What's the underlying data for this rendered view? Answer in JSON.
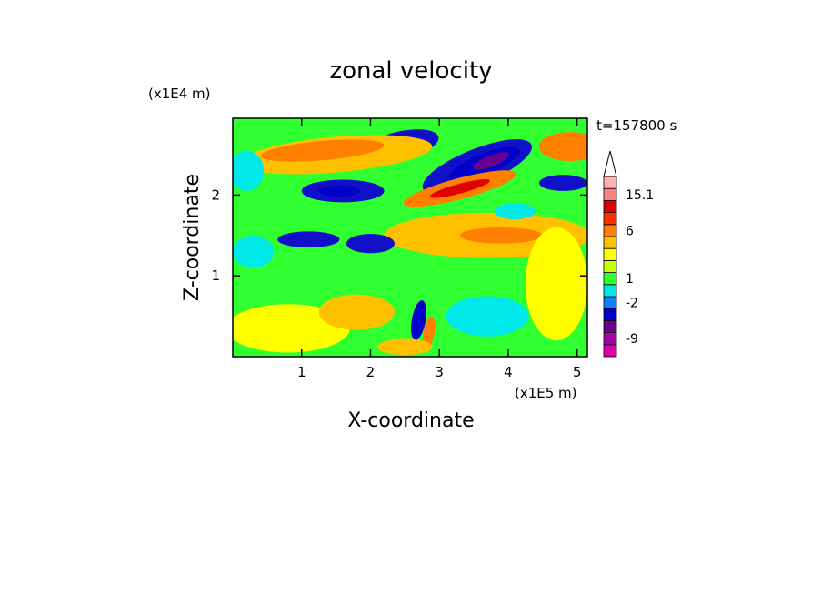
{
  "chart_data": {
    "type": "heatmap",
    "title": "zonal velocity",
    "xlabel": "X-coordinate",
    "ylabel": "Z-coordinate",
    "x_unit": "(x1E5 m)",
    "y_unit": "(x1E4 m)",
    "time_label": "t=157800 s",
    "xlim": [
      0,
      5.15
    ],
    "ylim": [
      0,
      2.95
    ],
    "x_ticks": [
      {
        "value": 1,
        "label": "1"
      },
      {
        "value": 2,
        "label": "2"
      },
      {
        "value": 3,
        "label": "3"
      },
      {
        "value": 4,
        "label": "4"
      },
      {
        "value": 5,
        "label": "5"
      }
    ],
    "y_ticks": [
      {
        "value": 1,
        "label": "1"
      },
      {
        "value": 2,
        "label": "2"
      }
    ],
    "background_level": "0",
    "features": [
      {
        "x": 2.45,
        "z": 2.62,
        "rx": 0.55,
        "rz": 0.17,
        "rot": -12,
        "level": "-5"
      },
      {
        "x": 2.55,
        "z": 2.58,
        "rx": 0.25,
        "rz": 0.09,
        "rot": -12,
        "level": "-7"
      },
      {
        "x": 3.55,
        "z": 2.35,
        "rx": 0.85,
        "rz": 0.22,
        "rot": -22,
        "level": "-5"
      },
      {
        "x": 3.65,
        "z": 2.38,
        "rx": 0.55,
        "rz": 0.13,
        "rot": -22,
        "level": "-7"
      },
      {
        "x": 3.75,
        "z": 2.42,
        "rx": 0.28,
        "rz": 0.07,
        "rot": -22,
        "level": "-9"
      },
      {
        "x": 3.3,
        "z": 2.08,
        "rx": 0.85,
        "rz": 0.13,
        "rot": -15,
        "level": "4"
      },
      {
        "x": 3.3,
        "z": 2.08,
        "rx": 0.45,
        "rz": 0.06,
        "rot": -15,
        "level": "8"
      },
      {
        "x": 1.6,
        "z": 2.05,
        "rx": 0.6,
        "rz": 0.14,
        "rot": 0,
        "level": "-5"
      },
      {
        "x": 1.55,
        "z": 2.05,
        "rx": 0.3,
        "rz": 0.07,
        "rot": 0,
        "level": "-7"
      },
      {
        "x": 4.9,
        "z": 2.6,
        "rx": 0.45,
        "rz": 0.18,
        "rot": 0,
        "level": "4"
      },
      {
        "x": 4.8,
        "z": 2.15,
        "rx": 0.35,
        "rz": 0.1,
        "rot": 0,
        "level": "-5"
      },
      {
        "x": 1.5,
        "z": 2.5,
        "rx": 1.4,
        "rz": 0.22,
        "rot": -5,
        "level": "2"
      },
      {
        "x": 1.3,
        "z": 2.55,
        "rx": 0.9,
        "rz": 0.12,
        "rot": -5,
        "level": "4"
      },
      {
        "x": 3.7,
        "z": 1.5,
        "rx": 1.5,
        "rz": 0.28,
        "rot": 0,
        "level": "2"
      },
      {
        "x": 3.9,
        "z": 1.5,
        "rx": 0.6,
        "rz": 0.1,
        "rot": 0,
        "level": "4"
      },
      {
        "x": 2.0,
        "z": 1.4,
        "rx": 0.35,
        "rz": 0.12,
        "rot": 0,
        "level": "-5"
      },
      {
        "x": 1.1,
        "z": 1.45,
        "rx": 0.45,
        "rz": 0.1,
        "rot": 0,
        "level": "-5"
      },
      {
        "x": 0.3,
        "z": 1.3,
        "rx": 0.3,
        "rz": 0.2,
        "rot": 0,
        "level": "-2"
      },
      {
        "x": 0.8,
        "z": 0.35,
        "rx": 0.9,
        "rz": 0.3,
        "rot": 0,
        "level": "1"
      },
      {
        "x": 1.8,
        "z": 0.55,
        "rx": 0.55,
        "rz": 0.22,
        "rot": 0,
        "level": "2"
      },
      {
        "x": 4.7,
        "z": 0.9,
        "rx": 0.45,
        "rz": 0.7,
        "rot": 0,
        "level": "1"
      },
      {
        "x": 3.7,
        "z": 0.5,
        "rx": 0.6,
        "rz": 0.25,
        "rot": 0,
        "level": "-2"
      },
      {
        "x": 2.7,
        "z": 0.45,
        "rx": 0.1,
        "rz": 0.25,
        "rot": 10,
        "level": "-7"
      },
      {
        "x": 2.85,
        "z": 0.3,
        "rx": 0.08,
        "rz": 0.2,
        "rot": 10,
        "level": "4"
      },
      {
        "x": 2.5,
        "z": 0.12,
        "rx": 0.4,
        "rz": 0.1,
        "rot": 0,
        "level": "2"
      },
      {
        "x": 4.1,
        "z": 1.8,
        "rx": 0.3,
        "rz": 0.1,
        "rot": 0,
        "level": "-2"
      },
      {
        "x": 0.2,
        "z": 2.3,
        "rx": 0.25,
        "rz": 0.25,
        "rot": 0,
        "level": "-2"
      }
    ],
    "legend": {
      "levels": [
        {
          "color": "#e000a8",
          "label": ""
        },
        {
          "color": "#a800a8",
          "label": "-9"
        },
        {
          "color": "#6a0090",
          "label": ""
        },
        {
          "color": "#0000c8",
          "label": ""
        },
        {
          "color": "#1080ff",
          "label": "-2"
        },
        {
          "color": "#00e8e8",
          "label": ""
        },
        {
          "color": "#30ff30",
          "label": "1"
        },
        {
          "color": "#c8ff00",
          "label": ""
        },
        {
          "color": "#ffff00",
          "label": ""
        },
        {
          "color": "#ffc000",
          "label": ""
        },
        {
          "color": "#ff8000",
          "label": "6"
        },
        {
          "color": "#ff3000",
          "label": ""
        },
        {
          "color": "#e00000",
          "label": ""
        },
        {
          "color": "#ff8080",
          "label": "15.1"
        },
        {
          "color": "#ffb0b0",
          "label": ""
        }
      ]
    },
    "level_colors": {
      "-9": "#6a0090",
      "-7": "#0000c8",
      "-5": "#1010c8",
      "-2": "#00e8e8",
      "0": "#30ff30",
      "1": "#ffff00",
      "2": "#ffc000",
      "4": "#ff8000",
      "8": "#e00000"
    }
  }
}
